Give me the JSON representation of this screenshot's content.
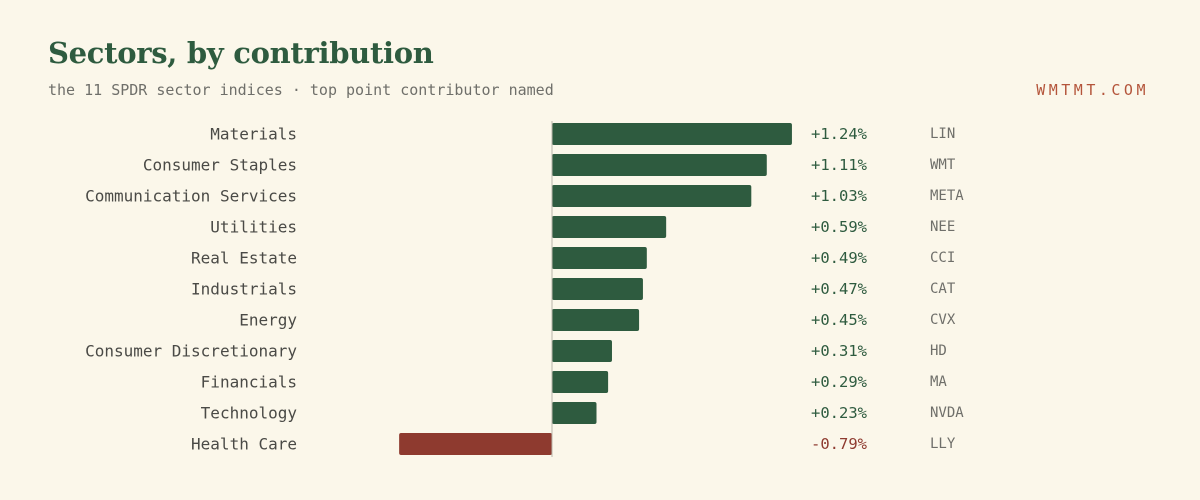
{
  "header": {
    "title": "Sectors, by contribution",
    "subtitle": "the 11 SPDR sector indices · top point contributor named",
    "brand": "WMTMT.COM"
  },
  "colors": {
    "positive": "#2e5b3f",
    "negative": "#8e3a2f",
    "brand": "#b4553b",
    "background": "#fbf7ea"
  },
  "chart_data": {
    "type": "bar",
    "orientation": "horizontal",
    "title": "Sectors, by contribution",
    "subtitle": "the 11 SPDR sector indices · top point contributor named",
    "unit": "%",
    "categories": [
      "Materials",
      "Consumer Staples",
      "Communication Services",
      "Utilities",
      "Real Estate",
      "Industrials",
      "Energy",
      "Consumer Discretionary",
      "Financials",
      "Technology",
      "Health Care"
    ],
    "values": [
      1.24,
      1.11,
      1.03,
      0.59,
      0.49,
      0.47,
      0.45,
      0.31,
      0.29,
      0.23,
      -0.79
    ],
    "value_labels": [
      "+1.24%",
      "+1.11%",
      "+1.03%",
      "+0.59%",
      "+0.49%",
      "+0.47%",
      "+0.45%",
      "+0.31%",
      "+0.29%",
      "+0.23%",
      "-0.79%"
    ],
    "top_contributors": [
      "LIN",
      "WMT",
      "META",
      "NEE",
      "CCI",
      "CAT",
      "CVX",
      "HD",
      "MA",
      "NVDA",
      "LLY"
    ],
    "xlim": [
      -0.79,
      1.24
    ],
    "grid": false,
    "legend": "none"
  }
}
